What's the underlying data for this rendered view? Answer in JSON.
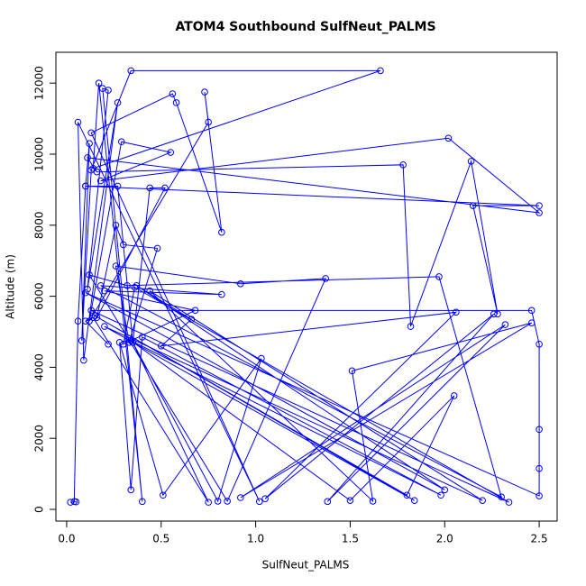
{
  "chart_data": {
    "type": "line",
    "title": "ATOM4 Southbound SulfNeut_PALMS",
    "xlabel": "SulfNeut_PALMS",
    "ylabel": "Altitude (m)",
    "color": "#0000ff",
    "x": [
      0.02,
      0.05,
      0.04,
      0.06,
      0.1,
      0.12,
      0.08,
      0.13,
      0.34,
      1.66,
      0.14,
      0.17,
      0.4,
      0.19,
      0.22,
      0.11,
      0.27,
      0.09,
      0.06,
      1.02,
      0.13,
      0.56,
      0.58,
      0.82,
      0.73,
      0.75,
      0.12,
      0.29,
      0.55,
      0.18,
      2.02,
      2.5,
      0.11,
      0.16,
      1.78,
      1.82,
      2.14,
      2.28,
      2.15,
      2.5,
      0.1,
      0.27,
      0.35,
      0.44,
      0.52,
      0.16,
      0.26,
      0.3,
      0.48,
      0.33,
      0.26,
      0.92,
      1.37,
      0.85,
      0.12,
      0.32,
      1.97,
      2.3,
      0.18,
      0.82,
      0.2,
      0.68,
      0.3,
      0.36,
      2.34,
      0.13,
      2.46,
      2.5,
      2.5,
      2.5,
      2.5,
      0.1,
      2.0,
      0.37,
      0.66,
      0.5,
      2.06,
      1.05,
      2.26,
      1.38,
      2.32,
      0.92,
      2.46,
      1.51,
      1.62,
      0.44,
      2.2,
      0.2,
      1.84,
      0.15,
      1.8,
      2.05,
      1.5,
      0.34,
      1.98,
      0.4,
      0.34,
      0.28,
      0.51,
      1.03,
      0.8,
      0.35,
      0.75,
      0.14,
      0.1,
      0.22
    ],
    "values": [
      200,
      210,
      220,
      5300,
      9100,
      10300,
      4750,
      9550,
      12350,
      12350,
      9600,
      12000,
      220,
      11850,
      11800,
      6200,
      11450,
      4200,
      10900,
      220,
      10600,
      11700,
      11450,
      7800,
      11750,
      10900,
      5300,
      10350,
      10050,
      9250,
      10450,
      8350,
      9900,
      9500,
      9700,
      5150,
      9800,
      5500,
      8550,
      8550,
      9100,
      9100,
      4700,
      9050,
      9050,
      5400,
      8000,
      7450,
      7350,
      4700,
      6850,
      6350,
      6500,
      230,
      6600,
      6300,
      6550,
      350,
      6300,
      6050,
      6150,
      5600,
      4650,
      6250,
      200,
      5600,
      5600,
      4650,
      2250,
      1150,
      380,
      6100,
      550,
      6300,
      5350,
      4600,
      5550,
      300,
      5500,
      220,
      5200,
      330,
      5250,
      3900,
      230,
      6150,
      250,
      5150,
      250,
      5450,
      400,
      3200,
      250,
      4750,
      400,
      4850,
      550,
      4700,
      400,
      4250,
      230,
      4700,
      200,
      5400,
      5300,
      4650
    ],
    "xlim": [
      -0.057,
      2.595
    ],
    "ylim": [
      -330,
      12868
    ],
    "xticks": [
      {
        "value": 0,
        "label": "0.0"
      },
      0.5,
      {
        "value": 1,
        "label": "1.0"
      },
      1.5,
      {
        "value": 2,
        "label": "2.0"
      },
      2.5
    ],
    "yticks": [
      0,
      2000,
      4000,
      6000,
      8000,
      10000,
      12000
    ]
  }
}
